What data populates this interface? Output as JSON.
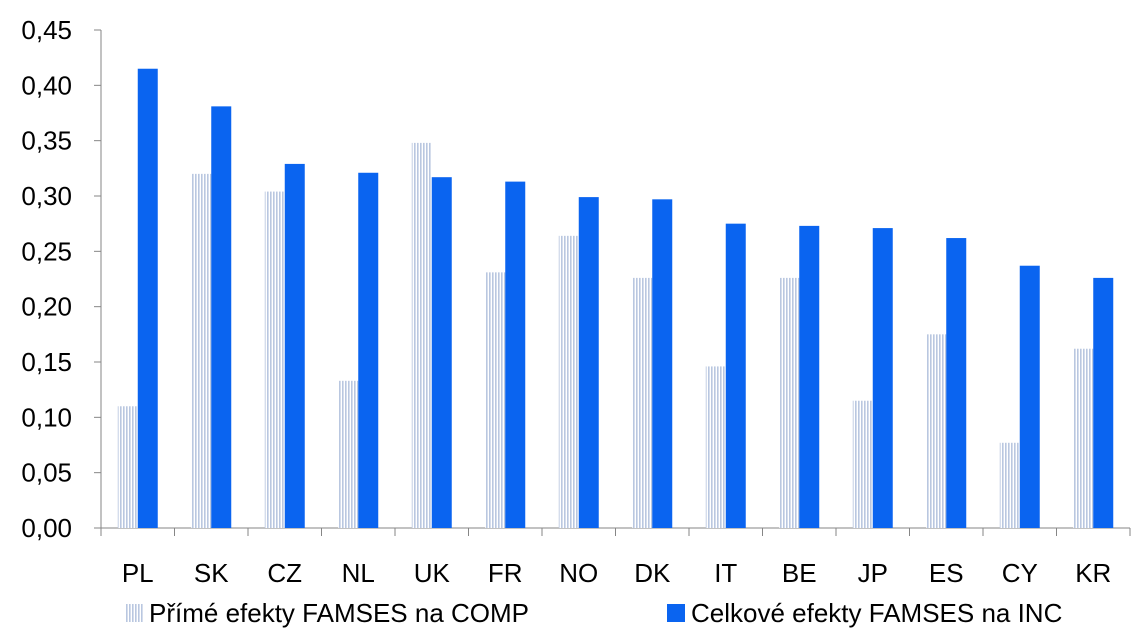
{
  "chart_data": {
    "type": "bar",
    "categories": [
      "PL",
      "SK",
      "CZ",
      "NL",
      "UK",
      "FR",
      "NO",
      "DK",
      "IT",
      "BE",
      "JP",
      "ES",
      "CY",
      "KR"
    ],
    "series": [
      {
        "name": "Přímé efekty FAMSES na COMP",
        "color": "#b9c7e0",
        "pattern": "vertical-stripes",
        "values": [
          0.11,
          0.32,
          0.304,
          0.133,
          0.348,
          0.231,
          0.264,
          0.226,
          0.146,
          0.226,
          0.115,
          0.175,
          0.077,
          0.162
        ]
      },
      {
        "name": "Celkové efekty FAMSES na INC",
        "color": "#0a64f0",
        "pattern": "solid",
        "values": [
          0.415,
          0.381,
          0.329,
          0.321,
          0.317,
          0.313,
          0.299,
          0.297,
          0.275,
          0.273,
          0.271,
          0.262,
          0.237,
          0.226
        ]
      }
    ],
    "yticks": [
      "0,00",
      "0,05",
      "0,10",
      "0,15",
      "0,20",
      "0,25",
      "0,30",
      "0,35",
      "0,40",
      "0,45"
    ],
    "ylim": [
      0,
      0.45
    ],
    "grid": false,
    "legend": "bottom",
    "title": "",
    "xlabel": "",
    "ylabel": ""
  }
}
